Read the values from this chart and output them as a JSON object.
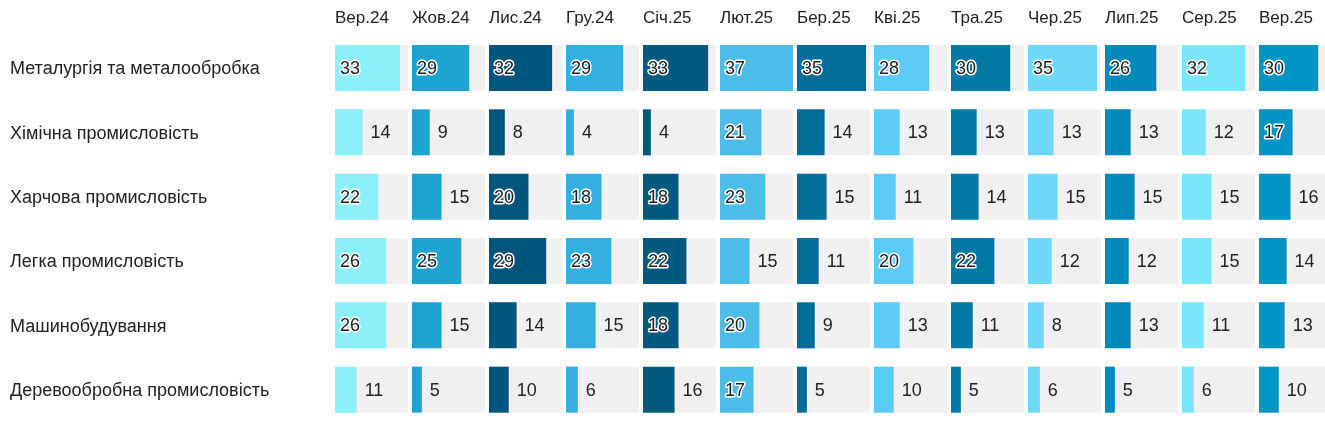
{
  "chart_data": [
    {
      "type": "bar",
      "orientation": "horizontal",
      "title": "Вер.24",
      "categories": [
        "Металургія та металообробка",
        "Хімічна промисловість",
        "Харчова промисловість",
        "Легка промисловість",
        "Машинобудування",
        "Деревообробна промисловість"
      ],
      "values": [
        33,
        14,
        22,
        26,
        26,
        11
      ],
      "color": "#8cf0fb",
      "xlim": [
        0,
        37
      ],
      "data_labels": true,
      "tick_labels": "y"
    },
    {
      "type": "bar",
      "orientation": "horizontal",
      "title": "Жов.24",
      "categories": [
        null,
        null,
        null,
        null,
        null,
        null
      ],
      "values": [
        29,
        9,
        15,
        25,
        15,
        5
      ],
      "color": "#1fa3d0",
      "xlim": [
        0,
        37
      ],
      "data_labels": true,
      "tick_labels": false
    },
    {
      "type": "bar",
      "orientation": "horizontal",
      "title": "Лис.24",
      "categories": [
        null,
        null,
        null,
        null,
        null,
        null
      ],
      "values": [
        32,
        8,
        20,
        29,
        14,
        10
      ],
      "color": "#00557c",
      "xlim": [
        0,
        37
      ],
      "data_labels": true,
      "tick_labels": false
    },
    {
      "type": "bar",
      "orientation": "horizontal",
      "title": "Гру.24",
      "categories": [
        null,
        null,
        null,
        null,
        null,
        null
      ],
      "values": [
        29,
        4,
        18,
        23,
        15,
        6
      ],
      "color": "#33b0e0",
      "xlim": [
        0,
        37
      ],
      "data_labels": true,
      "tick_labels": false
    },
    {
      "type": "bar",
      "orientation": "horizontal",
      "title": "Січ.25",
      "categories": [
        null,
        null,
        null,
        null,
        null,
        null
      ],
      "values": [
        33,
        4,
        18,
        22,
        18,
        16
      ],
      "color": "#005a80",
      "xlim": [
        0,
        37
      ],
      "data_labels": true,
      "tick_labels": false
    },
    {
      "type": "bar",
      "orientation": "horizontal",
      "title": "Лют.25",
      "categories": [
        null,
        null,
        null,
        null,
        null,
        null
      ],
      "values": [
        37,
        21,
        23,
        15,
        20,
        17
      ],
      "color": "#4bbde8",
      "xlim": [
        0,
        37
      ],
      "data_labels": true,
      "tick_labels": false
    },
    {
      "type": "bar",
      "orientation": "horizontal",
      "title": "Бер.25",
      "categories": [
        null,
        null,
        null,
        null,
        null,
        null
      ],
      "values": [
        35,
        14,
        15,
        11,
        9,
        5
      ],
      "color": "#006e99",
      "xlim": [
        0,
        37
      ],
      "data_labels": true,
      "tick_labels": false
    },
    {
      "type": "bar",
      "orientation": "horizontal",
      "title": "Кві.25",
      "categories": [
        null,
        null,
        null,
        null,
        null,
        null
      ],
      "values": [
        28,
        13,
        11,
        20,
        13,
        10
      ],
      "color": "#5ccbf5",
      "xlim": [
        0,
        37
      ],
      "data_labels": true,
      "tick_labels": false
    },
    {
      "type": "bar",
      "orientation": "horizontal",
      "title": "Тра.25",
      "categories": [
        null,
        null,
        null,
        null,
        null,
        null
      ],
      "values": [
        30,
        13,
        14,
        22,
        11,
        5
      ],
      "color": "#007aa5",
      "xlim": [
        0,
        37
      ],
      "data_labels": true,
      "tick_labels": false
    },
    {
      "type": "bar",
      "orientation": "horizontal",
      "title": "Чер.25",
      "categories": [
        null,
        null,
        null,
        null,
        null,
        null
      ],
      "values": [
        35,
        13,
        15,
        12,
        8,
        6
      ],
      "color": "#6dd8fa",
      "xlim": [
        0,
        37
      ],
      "data_labels": true,
      "tick_labels": false
    },
    {
      "type": "bar",
      "orientation": "horizontal",
      "title": "Лип.25",
      "categories": [
        null,
        null,
        null,
        null,
        null,
        null
      ],
      "values": [
        26,
        13,
        15,
        12,
        13,
        5
      ],
      "color": "#0089b8",
      "xlim": [
        0,
        37
      ],
      "data_labels": true,
      "tick_labels": false
    },
    {
      "type": "bar",
      "orientation": "horizontal",
      "title": "Сер.25",
      "categories": [
        null,
        null,
        null,
        null,
        null,
        null
      ],
      "values": [
        32,
        12,
        15,
        15,
        11,
        6
      ],
      "color": "#7ae6fc",
      "xlim": [
        0,
        37
      ],
      "data_labels": true,
      "tick_labels": false
    },
    {
      "type": "bar",
      "orientation": "horizontal",
      "title": "Вер.25",
      "categories": [
        null,
        null,
        null,
        null,
        null,
        null
      ],
      "values": [
        30,
        17,
        16,
        14,
        13,
        10
      ],
      "color": "#0095c4",
      "xlim": [
        0,
        37
      ],
      "data_labels": true,
      "tick_labels": false
    }
  ]
}
